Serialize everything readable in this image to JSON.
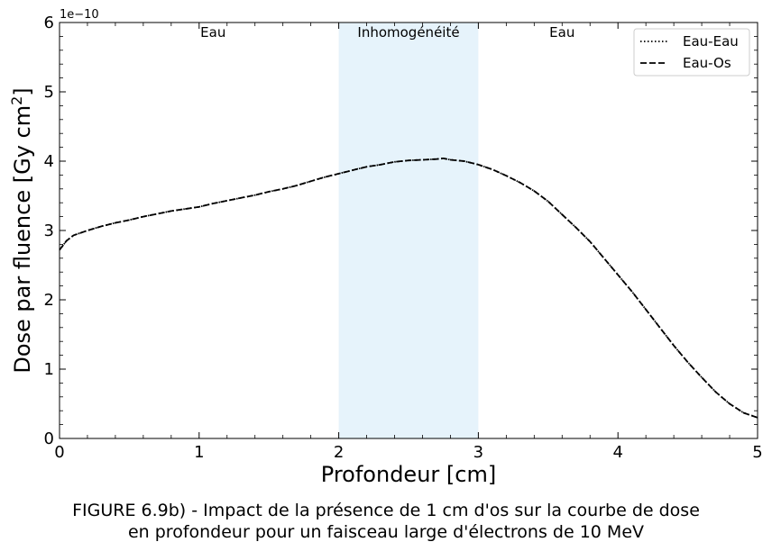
{
  "chart_data": {
    "type": "line",
    "xlabel": "Profondeur [cm]",
    "ylabel_main": "Dose par fluence [Gy cm",
    "ylabel_sup": "2",
    "ylabel_close": "]",
    "offset_label": "1e−10",
    "xlim": [
      0,
      5
    ],
    "ylim": [
      0,
      6
    ],
    "xticks": [
      "0",
      "1",
      "2",
      "3",
      "4",
      "5"
    ],
    "yticks": [
      "0",
      "1",
      "2",
      "3",
      "4",
      "5",
      "6"
    ],
    "grid": false,
    "legend": "top-right",
    "shaded_region": {
      "x0": 2,
      "x1": 3,
      "color": "#e6f3fb"
    },
    "region_labels": [
      {
        "text": "Eau",
        "x": 1.1
      },
      {
        "text": "Inhomogénéité",
        "x": 2.5
      },
      {
        "text": "Eau",
        "x": 3.6
      }
    ],
    "series": [
      {
        "name": "Eau-Eau",
        "style": "dotted",
        "color": "#000000",
        "x": [
          0,
          0.05,
          0.1,
          0.2,
          0.3,
          0.4,
          0.5,
          0.6,
          0.7,
          0.8,
          0.9,
          1.0,
          1.1,
          1.2,
          1.3,
          1.4,
          1.5,
          1.6,
          1.7,
          1.8,
          1.9,
          2.0,
          2.1,
          2.2,
          2.3,
          2.4,
          2.5,
          2.6,
          2.7,
          2.75,
          2.8,
          2.9,
          3.0,
          3.1,
          3.2,
          3.3,
          3.4,
          3.5,
          3.6,
          3.7,
          3.8,
          3.9,
          4.0,
          4.1,
          4.2,
          4.3,
          4.4,
          4.5,
          4.6,
          4.7,
          4.8,
          4.9,
          5.0
        ],
        "y": [
          2.72,
          2.85,
          2.93,
          3.0,
          3.06,
          3.11,
          3.15,
          3.2,
          3.24,
          3.28,
          3.31,
          3.34,
          3.39,
          3.43,
          3.47,
          3.51,
          3.56,
          3.6,
          3.65,
          3.71,
          3.77,
          3.82,
          3.87,
          3.92,
          3.95,
          3.99,
          4.01,
          4.02,
          4.03,
          4.04,
          4.02,
          4.0,
          3.95,
          3.88,
          3.79,
          3.69,
          3.57,
          3.42,
          3.23,
          3.04,
          2.84,
          2.6,
          2.36,
          2.12,
          1.86,
          1.6,
          1.34,
          1.1,
          0.88,
          0.67,
          0.5,
          0.37,
          0.3
        ]
      },
      {
        "name": "Eau-Os",
        "style": "dashed",
        "color": "#000000",
        "x": [
          0,
          0.05,
          0.1,
          0.2,
          0.3,
          0.4,
          0.5,
          0.6,
          0.7,
          0.8,
          0.9,
          1.0,
          1.1,
          1.2,
          1.3,
          1.4,
          1.5,
          1.6,
          1.7,
          1.8,
          1.9,
          2.0,
          2.1,
          2.2,
          2.3,
          2.4,
          2.5,
          2.6,
          2.7,
          2.75,
          2.8,
          2.9,
          3.0,
          3.1,
          3.2,
          3.3,
          3.4,
          3.5,
          3.6,
          3.7,
          3.8,
          3.9,
          4.0,
          4.1,
          4.2,
          4.3,
          4.4,
          4.5,
          4.6,
          4.7,
          4.8,
          4.9,
          5.0
        ],
        "y": [
          2.72,
          2.85,
          2.93,
          3.0,
          3.06,
          3.11,
          3.15,
          3.2,
          3.24,
          3.28,
          3.31,
          3.34,
          3.39,
          3.43,
          3.47,
          3.51,
          3.56,
          3.6,
          3.65,
          3.71,
          3.77,
          3.82,
          3.87,
          3.92,
          3.95,
          3.99,
          4.01,
          4.02,
          4.03,
          4.04,
          4.02,
          4.0,
          3.95,
          3.88,
          3.79,
          3.69,
          3.57,
          3.42,
          3.23,
          3.04,
          2.84,
          2.6,
          2.36,
          2.12,
          1.86,
          1.6,
          1.34,
          1.1,
          0.88,
          0.67,
          0.5,
          0.37,
          0.3
        ]
      }
    ]
  },
  "caption": {
    "line1": "FIGURE 6.9b) - Impact de la présence de 1 cm d'os sur la courbe de dose",
    "line2": "en profondeur pour un faisceau large d'électrons de 10 MeV"
  }
}
